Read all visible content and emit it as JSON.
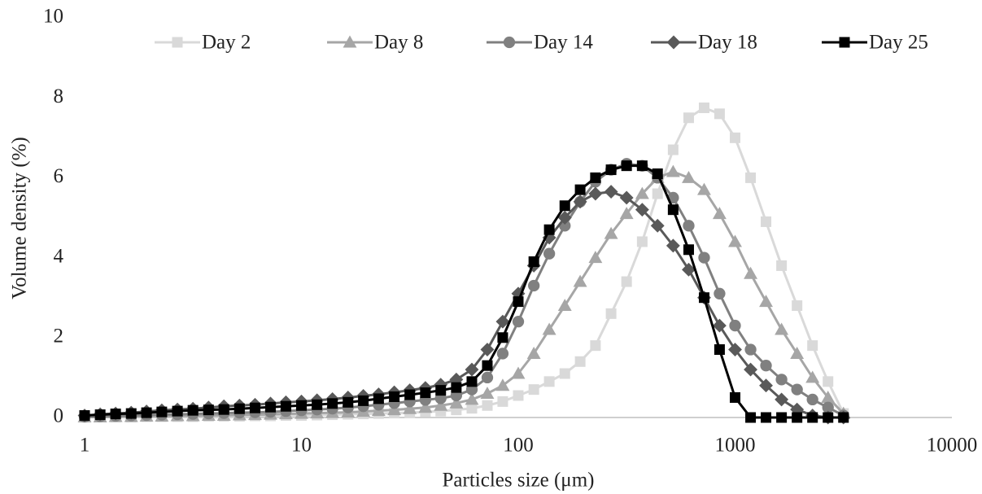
{
  "chart_data": {
    "type": "line",
    "x_label": "Particles size (μm)",
    "y_label": "Volume density (%)",
    "x": [
      1,
      1.18,
      1.39,
      1.64,
      1.93,
      2.27,
      2.68,
      3.16,
      3.73,
      4.39,
      5.18,
      6.11,
      7.2,
      8.48,
      10,
      11.8,
      13.9,
      16.4,
      19.3,
      22.7,
      26.8,
      31.6,
      37.3,
      43.9,
      51.8,
      61.1,
      72,
      84.8,
      100,
      118,
      139,
      164,
      193,
      227,
      268,
      316,
      373,
      439,
      518,
      611,
      720,
      848,
      1000,
      1179,
      1389,
      1638,
      1931,
      2276,
      2683,
      3162
    ],
    "series": [
      {
        "name": "Day 2",
        "color": "#d9d9d9",
        "marker": "square",
        "values": [
          0.01,
          0.01,
          0.01,
          0.01,
          0.02,
          0.02,
          0.02,
          0.02,
          0.03,
          0.03,
          0.03,
          0.04,
          0.04,
          0.05,
          0.05,
          0.06,
          0.07,
          0.08,
          0.09,
          0.1,
          0.11,
          0.12,
          0.14,
          0.16,
          0.19,
          0.23,
          0.3,
          0.4,
          0.55,
          0.7,
          0.9,
          1.1,
          1.4,
          1.8,
          2.6,
          3.4,
          4.4,
          5.6,
          6.7,
          7.5,
          7.75,
          7.6,
          7.0,
          6.0,
          4.9,
          3.8,
          2.8,
          1.8,
          0.9,
          0.1
        ]
      },
      {
        "name": "Day 8",
        "color": "#a6a6a6",
        "marker": "triangle",
        "values": [
          0.01,
          0.01,
          0.02,
          0.02,
          0.03,
          0.03,
          0.04,
          0.04,
          0.05,
          0.05,
          0.06,
          0.07,
          0.08,
          0.09,
          0.1,
          0.11,
          0.12,
          0.13,
          0.15,
          0.17,
          0.19,
          0.22,
          0.25,
          0.3,
          0.36,
          0.45,
          0.6,
          0.8,
          1.1,
          1.6,
          2.2,
          2.8,
          3.4,
          4.0,
          4.6,
          5.1,
          5.6,
          6.0,
          6.15,
          6.0,
          5.7,
          5.1,
          4.4,
          3.6,
          2.9,
          2.2,
          1.6,
          1.0,
          0.5,
          0.1
        ]
      },
      {
        "name": "Day 14",
        "color": "#808080",
        "marker": "circle",
        "values": [
          0.02,
          0.03,
          0.04,
          0.05,
          0.06,
          0.07,
          0.08,
          0.09,
          0.1,
          0.11,
          0.12,
          0.13,
          0.14,
          0.16,
          0.18,
          0.2,
          0.22,
          0.25,
          0.28,
          0.32,
          0.36,
          0.4,
          0.44,
          0.48,
          0.55,
          0.7,
          1.0,
          1.6,
          2.4,
          3.3,
          4.1,
          4.8,
          5.4,
          5.9,
          6.2,
          6.35,
          6.3,
          6.0,
          5.5,
          4.8,
          4.0,
          3.1,
          2.3,
          1.7,
          1.3,
          0.95,
          0.7,
          0.45,
          0.25,
          0.05
        ]
      },
      {
        "name": "Day 18",
        "color": "#595959",
        "marker": "diamond",
        "values": [
          0.05,
          0.08,
          0.1,
          0.12,
          0.15,
          0.18,
          0.2,
          0.22,
          0.25,
          0.28,
          0.3,
          0.32,
          0.35,
          0.38,
          0.4,
          0.43,
          0.46,
          0.5,
          0.54,
          0.58,
          0.63,
          0.68,
          0.74,
          0.82,
          0.95,
          1.2,
          1.7,
          2.4,
          3.1,
          3.8,
          4.5,
          5.0,
          5.4,
          5.6,
          5.65,
          5.5,
          5.2,
          4.8,
          4.3,
          3.7,
          3.0,
          2.3,
          1.7,
          1.2,
          0.8,
          0.45,
          0.2,
          0.05,
          0,
          0
        ]
      },
      {
        "name": "Day 25",
        "color": "#000000",
        "marker": "square",
        "values": [
          0.05,
          0.07,
          0.09,
          0.1,
          0.12,
          0.14,
          0.16,
          0.18,
          0.19,
          0.2,
          0.22,
          0.24,
          0.26,
          0.28,
          0.3,
          0.32,
          0.35,
          0.38,
          0.42,
          0.47,
          0.52,
          0.57,
          0.62,
          0.68,
          0.75,
          0.9,
          1.3,
          2.0,
          2.9,
          3.9,
          4.7,
          5.3,
          5.7,
          6.0,
          6.2,
          6.3,
          6.3,
          6.1,
          5.2,
          4.2,
          3.0,
          1.7,
          0.5,
          0,
          0,
          0,
          0,
          0,
          0,
          0
        ]
      }
    ],
    "xlim": [
      1,
      10000
    ],
    "xticks": [
      1,
      10,
      100,
      1000,
      10000
    ],
    "xscale": "log",
    "ylim": [
      0,
      10
    ],
    "yticks": [
      0,
      2,
      4,
      6,
      8,
      10
    ],
    "grid": false,
    "legend": "top"
  }
}
